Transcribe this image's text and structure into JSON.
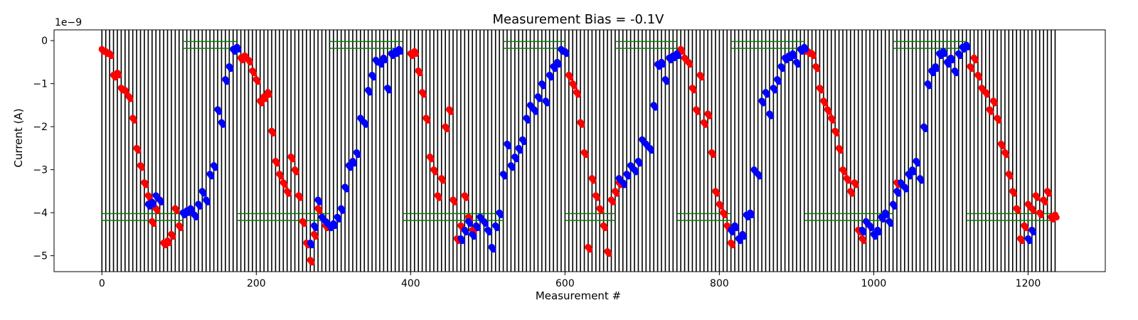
{
  "chart_data": {
    "type": "scatter",
    "title": "Measurement Bias = -0.1V",
    "xlabel": "Measurement #",
    "ylabel": "Current (A)",
    "y_offset_label": "1e−9",
    "xlim": [
      -62,
      1300
    ],
    "ylim": [
      -5.37,
      0.25
    ],
    "x_ticks": [
      0,
      200,
      400,
      600,
      800,
      1000,
      1200
    ],
    "x_tick_labels": [
      "0",
      "200",
      "400",
      "600",
      "800",
      "1000",
      "1200"
    ],
    "y_ticks": [
      0,
      -1,
      -2,
      -3,
      -4,
      -5
    ],
    "y_tick_labels": [
      "0",
      "−1",
      "−2",
      "−3",
      "−4",
      "−5"
    ],
    "grid": false,
    "vertical_lines": {
      "color": "#000000",
      "start": 0,
      "end": 1235,
      "step": 5
    },
    "reference_lines": {
      "color": "#008000",
      "top_levels": [
        -0.02,
        -0.18
      ],
      "bottom_levels": [
        -4.02,
        -4.18
      ],
      "top_segments": [
        [
          105,
          175
        ],
        [
          295,
          390
        ],
        [
          520,
          600
        ],
        [
          665,
          745
        ],
        [
          815,
          910
        ],
        [
          1025,
          1120
        ]
      ],
      "bottom_segments": [
        [
          0,
          105
        ],
        [
          175,
          295
        ],
        [
          390,
          520
        ],
        [
          600,
          665
        ],
        [
          745,
          815
        ],
        [
          910,
          1025
        ],
        [
          1120,
          1235
        ]
      ]
    },
    "series": [
      {
        "color": "#ff0000",
        "points": [
          [
            0,
            -0.2
          ],
          [
            5,
            -0.25
          ],
          [
            10,
            -0.3
          ],
          [
            15,
            -0.8
          ],
          [
            20,
            -0.75
          ],
          [
            25,
            -1.1
          ],
          [
            30,
            -1.15
          ],
          [
            35,
            -1.3
          ],
          [
            40,
            -1.8
          ],
          [
            45,
            -2.5
          ],
          [
            50,
            -2.9
          ],
          [
            55,
            -3.3
          ],
          [
            60,
            -3.6
          ],
          [
            65,
            -4.2
          ],
          [
            70,
            -3.9
          ],
          [
            75,
            -3.7
          ],
          [
            80,
            -4.7
          ],
          [
            85,
            -4.65
          ],
          [
            90,
            -4.5
          ],
          [
            95,
            -3.9
          ],
          [
            100,
            -4.3
          ],
          [
            180,
            -0.4
          ],
          [
            185,
            -0.35
          ],
          [
            190,
            -0.45
          ],
          [
            195,
            -0.7
          ],
          [
            200,
            -0.9
          ],
          [
            205,
            -1.4
          ],
          [
            210,
            -1.3
          ],
          [
            215,
            -1.2
          ],
          [
            220,
            -2.1
          ],
          [
            225,
            -2.8
          ],
          [
            230,
            -3.1
          ],
          [
            235,
            -3.3
          ],
          [
            240,
            -3.5
          ],
          [
            245,
            -2.7
          ],
          [
            250,
            -3.0
          ],
          [
            255,
            -3.6
          ],
          [
            260,
            -4.2
          ],
          [
            265,
            -4.7
          ],
          [
            270,
            -5.1
          ],
          [
            275,
            -4.5
          ],
          [
            280,
            -3.9
          ],
          [
            285,
            -4.1
          ],
          [
            290,
            -4.3
          ],
          [
            400,
            -0.3
          ],
          [
            405,
            -0.25
          ],
          [
            410,
            -0.7
          ],
          [
            415,
            -1.2
          ],
          [
            420,
            -1.8
          ],
          [
            425,
            -2.7
          ],
          [
            430,
            -3.0
          ],
          [
            435,
            -3.6
          ],
          [
            440,
            -3.2
          ],
          [
            445,
            -2.0
          ],
          [
            450,
            -1.6
          ],
          [
            455,
            -3.7
          ],
          [
            460,
            -4.6
          ],
          [
            465,
            -4.3
          ],
          [
            470,
            -3.6
          ],
          [
            475,
            -4.1
          ],
          [
            480,
            -4.4
          ],
          [
            600,
            -0.25
          ],
          [
            605,
            -0.8
          ],
          [
            610,
            -1.0
          ],
          [
            615,
            -1.2
          ],
          [
            620,
            -1.9
          ],
          [
            625,
            -2.6
          ],
          [
            630,
            -4.8
          ],
          [
            635,
            -3.2
          ],
          [
            640,
            -3.6
          ],
          [
            645,
            -3.9
          ],
          [
            650,
            -4.3
          ],
          [
            655,
            -4.9
          ],
          [
            660,
            -3.7
          ],
          [
            665,
            -3.5
          ],
          [
            670,
            -3.3
          ],
          [
            750,
            -0.2
          ],
          [
            755,
            -0.4
          ],
          [
            760,
            -0.5
          ],
          [
            765,
            -1.1
          ],
          [
            770,
            -1.6
          ],
          [
            775,
            -0.8
          ],
          [
            780,
            -1.9
          ],
          [
            785,
            -1.7
          ],
          [
            790,
            -2.6
          ],
          [
            795,
            -3.5
          ],
          [
            800,
            -3.8
          ],
          [
            805,
            -4.0
          ],
          [
            810,
            -4.3
          ],
          [
            815,
            -4.7
          ],
          [
            910,
            -0.2
          ],
          [
            915,
            -0.25
          ],
          [
            920,
            -0.3
          ],
          [
            925,
            -0.6
          ],
          [
            930,
            -1.1
          ],
          [
            935,
            -1.4
          ],
          [
            940,
            -1.6
          ],
          [
            945,
            -1.8
          ],
          [
            950,
            -2.1
          ],
          [
            955,
            -2.5
          ],
          [
            960,
            -3.0
          ],
          [
            965,
            -3.2
          ],
          [
            970,
            -3.5
          ],
          [
            975,
            -3.3
          ],
          [
            980,
            -4.4
          ],
          [
            985,
            -4.6
          ],
          [
            1030,
            -3.3
          ],
          [
            1125,
            -0.6
          ],
          [
            1130,
            -0.4
          ],
          [
            1135,
            -0.8
          ],
          [
            1140,
            -1.1
          ],
          [
            1145,
            -1.2
          ],
          [
            1150,
            -1.6
          ],
          [
            1155,
            -1.4
          ],
          [
            1160,
            -1.8
          ],
          [
            1165,
            -2.4
          ],
          [
            1170,
            -2.6
          ],
          [
            1175,
            -3.1
          ],
          [
            1180,
            -3.5
          ],
          [
            1185,
            -3.9
          ],
          [
            1190,
            -4.6
          ],
          [
            1195,
            -4.3
          ],
          [
            1200,
            -3.8
          ],
          [
            1205,
            -3.9
          ],
          [
            1210,
            -3.6
          ],
          [
            1215,
            -4.0
          ],
          [
            1220,
            -3.7
          ],
          [
            1225,
            -3.5
          ],
          [
            1230,
            -4.1
          ],
          [
            1235,
            -4.05
          ]
        ]
      },
      {
        "color": "#0000ff",
        "points": [
          [
            60,
            -3.8
          ],
          [
            65,
            -3.75
          ],
          [
            70,
            -3.6
          ],
          [
            75,
            -3.7
          ],
          [
            105,
            -4.0
          ],
          [
            110,
            -3.95
          ],
          [
            115,
            -3.9
          ],
          [
            120,
            -4.05
          ],
          [
            125,
            -3.8
          ],
          [
            130,
            -3.5
          ],
          [
            135,
            -3.7
          ],
          [
            140,
            -3.1
          ],
          [
            145,
            -2.9
          ],
          [
            150,
            -1.6
          ],
          [
            155,
            -1.9
          ],
          [
            160,
            -0.9
          ],
          [
            165,
            -0.6
          ],
          [
            170,
            -0.2
          ],
          [
            175,
            -0.15
          ],
          [
            270,
            -4.7
          ],
          [
            275,
            -4.3
          ],
          [
            280,
            -3.7
          ],
          [
            285,
            -4.1
          ],
          [
            290,
            -4.2
          ],
          [
            295,
            -4.3
          ],
          [
            300,
            -4.25
          ],
          [
            305,
            -4.1
          ],
          [
            310,
            -3.9
          ],
          [
            315,
            -3.4
          ],
          [
            320,
            -2.9
          ],
          [
            325,
            -2.8
          ],
          [
            330,
            -2.6
          ],
          [
            335,
            -1.8
          ],
          [
            340,
            -1.9
          ],
          [
            345,
            -1.15
          ],
          [
            350,
            -0.8
          ],
          [
            355,
            -0.45
          ],
          [
            360,
            -0.5
          ],
          [
            365,
            -0.4
          ],
          [
            370,
            -1.1
          ],
          [
            375,
            -0.3
          ],
          [
            380,
            -0.25
          ],
          [
            385,
            -0.2
          ],
          [
            465,
            -4.6
          ],
          [
            470,
            -4.4
          ],
          [
            475,
            -4.2
          ],
          [
            480,
            -4.5
          ],
          [
            485,
            -4.3
          ],
          [
            490,
            -4.1
          ],
          [
            495,
            -4.2
          ],
          [
            500,
            -4.4
          ],
          [
            505,
            -4.8
          ],
          [
            510,
            -4.3
          ],
          [
            515,
            -4.0
          ],
          [
            520,
            -3.1
          ],
          [
            525,
            -2.4
          ],
          [
            530,
            -2.9
          ],
          [
            535,
            -2.7
          ],
          [
            540,
            -2.5
          ],
          [
            545,
            -2.3
          ],
          [
            550,
            -1.8
          ],
          [
            555,
            -1.5
          ],
          [
            560,
            -1.6
          ],
          [
            565,
            -1.3
          ],
          [
            570,
            -1.0
          ],
          [
            575,
            -1.4
          ],
          [
            580,
            -0.8
          ],
          [
            585,
            -0.6
          ],
          [
            590,
            -0.5
          ],
          [
            595,
            -0.2
          ],
          [
            600,
            -0.25
          ],
          [
            670,
            -3.2
          ],
          [
            675,
            -3.3
          ],
          [
            680,
            -3.1
          ],
          [
            685,
            -2.9
          ],
          [
            690,
            -3.0
          ],
          [
            695,
            -2.8
          ],
          [
            700,
            -2.3
          ],
          [
            705,
            -2.4
          ],
          [
            710,
            -2.5
          ],
          [
            715,
            -1.5
          ],
          [
            720,
            -0.55
          ],
          [
            725,
            -0.5
          ],
          [
            730,
            -0.9
          ],
          [
            735,
            -0.4
          ],
          [
            740,
            -0.35
          ],
          [
            745,
            -0.3
          ],
          [
            815,
            -4.4
          ],
          [
            820,
            -4.3
          ],
          [
            825,
            -4.6
          ],
          [
            830,
            -4.5
          ],
          [
            835,
            -4.05
          ],
          [
            840,
            -4.0
          ],
          [
            845,
            -3.0
          ],
          [
            850,
            -3.1
          ],
          [
            855,
            -1.4
          ],
          [
            860,
            -1.2
          ],
          [
            865,
            -1.7
          ],
          [
            870,
            -1.1
          ],
          [
            875,
            -0.9
          ],
          [
            880,
            -0.6
          ],
          [
            885,
            -0.4
          ],
          [
            890,
            -0.35
          ],
          [
            895,
            -0.3
          ],
          [
            900,
            -0.5
          ],
          [
            905,
            -0.2
          ],
          [
            910,
            -0.15
          ],
          [
            985,
            -4.4
          ],
          [
            990,
            -4.2
          ],
          [
            995,
            -4.3
          ],
          [
            1000,
            -4.5
          ],
          [
            1005,
            -4.4
          ],
          [
            1010,
            -4.1
          ],
          [
            1015,
            -4.0
          ],
          [
            1020,
            -4.2
          ],
          [
            1025,
            -3.8
          ],
          [
            1030,
            -3.5
          ],
          [
            1035,
            -3.3
          ],
          [
            1040,
            -3.4
          ],
          [
            1045,
            -3.1
          ],
          [
            1050,
            -3.0
          ],
          [
            1055,
            -2.8
          ],
          [
            1060,
            -3.2
          ],
          [
            1065,
            -2.0
          ],
          [
            1070,
            -1.0
          ],
          [
            1075,
            -0.7
          ],
          [
            1080,
            -0.6
          ],
          [
            1085,
            -0.3
          ],
          [
            1090,
            -0.25
          ],
          [
            1095,
            -0.5
          ],
          [
            1100,
            -0.4
          ],
          [
            1105,
            -0.7
          ],
          [
            1110,
            -0.3
          ],
          [
            1115,
            -0.15
          ],
          [
            1120,
            -0.1
          ],
          [
            1200,
            -4.6
          ],
          [
            1205,
            -4.4
          ]
        ]
      }
    ]
  }
}
